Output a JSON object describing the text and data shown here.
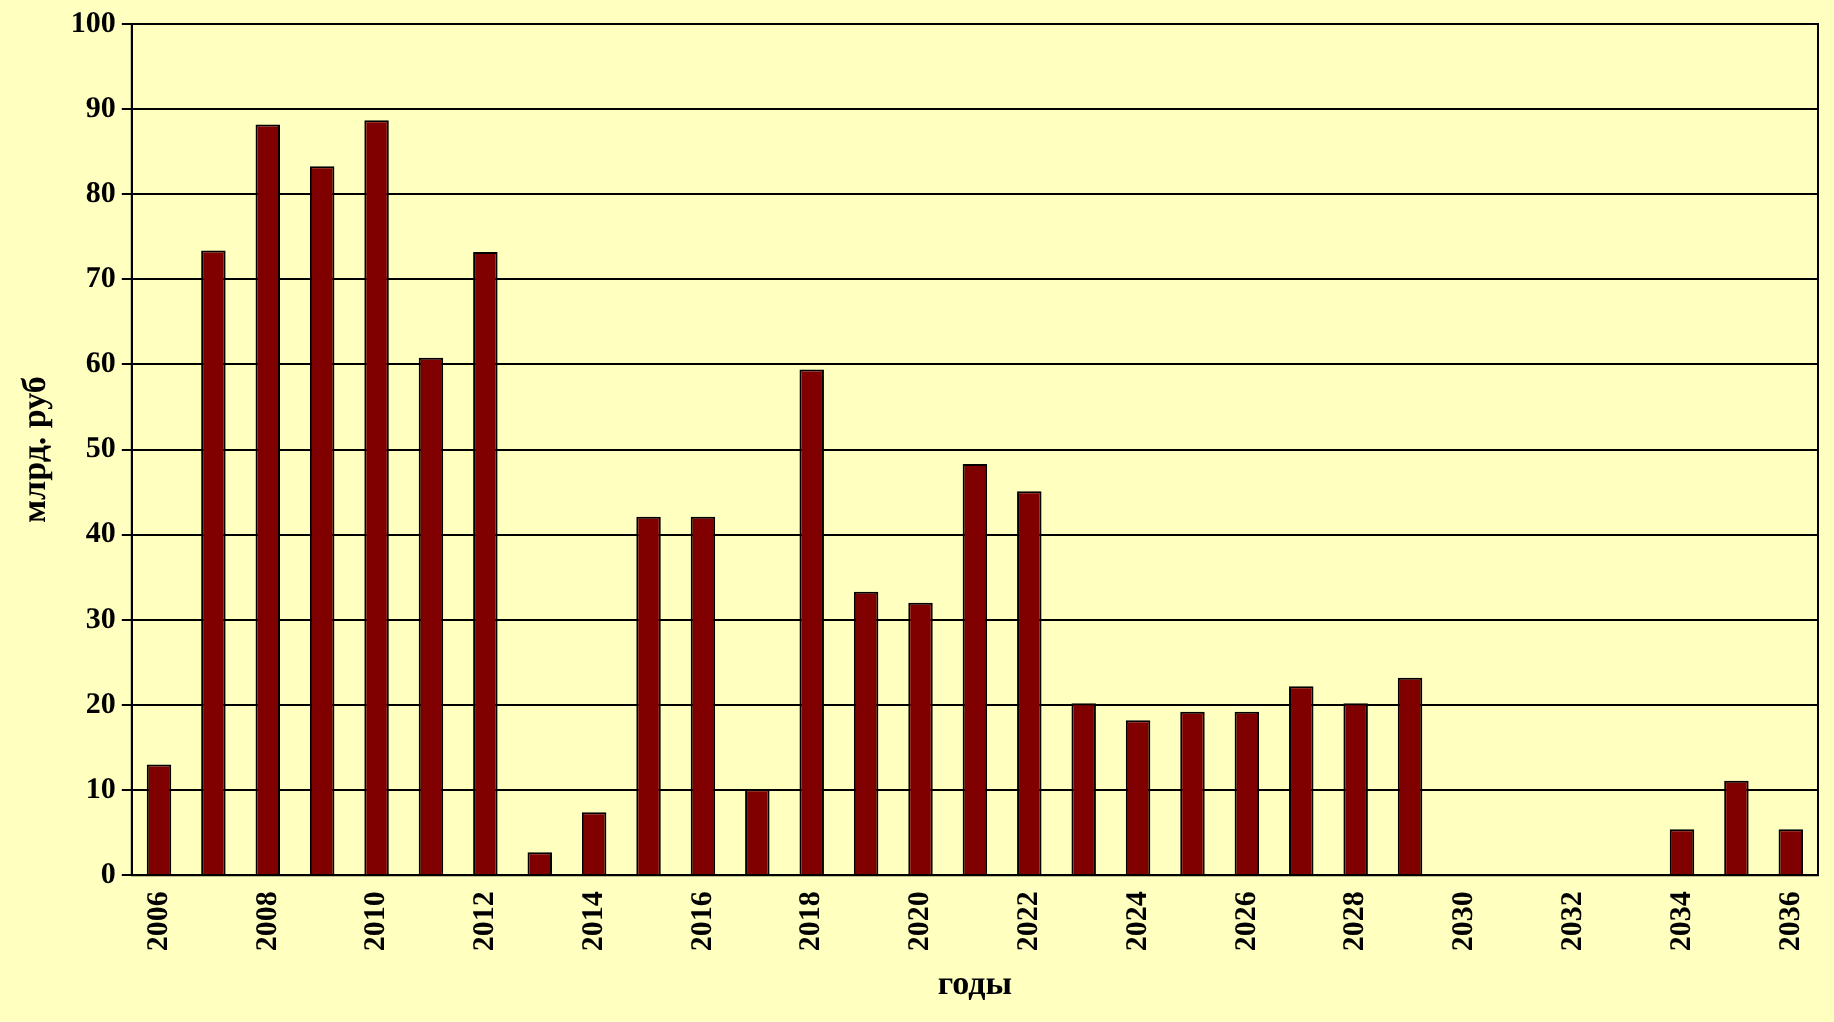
{
  "chart_data": {
    "type": "bar",
    "xlabel": "годы",
    "ylabel": "млрд. руб",
    "categories": [
      "2006",
      null,
      "2008",
      null,
      "2010",
      null,
      "2012",
      null,
      "2014",
      null,
      "2016",
      null,
      "2018",
      null,
      "2020",
      null,
      "2022",
      null,
      "2024",
      null,
      "2026",
      null,
      "2028",
      null,
      "2030",
      null,
      "2032",
      null,
      "2034",
      null,
      "2036"
    ],
    "values": [
      13,
      73.4,
      88.2,
      83.3,
      88.7,
      60.8,
      73.2,
      2.7,
      7.4,
      42.1,
      42.1,
      10.1,
      59.4,
      33.3,
      32,
      48.3,
      45.1,
      20.2,
      18.2,
      19.2,
      19.2,
      22.2,
      20.2,
      23.2,
      0,
      0,
      0,
      0,
      5.4,
      11.1,
      5.4
    ],
    "color": "#800000",
    "ylim": [
      0,
      100
    ],
    "yticks": [
      0,
      10,
      20,
      30,
      40,
      50,
      60,
      70,
      80,
      90,
      100
    ],
    "grid": "y",
    "legend": false
  }
}
